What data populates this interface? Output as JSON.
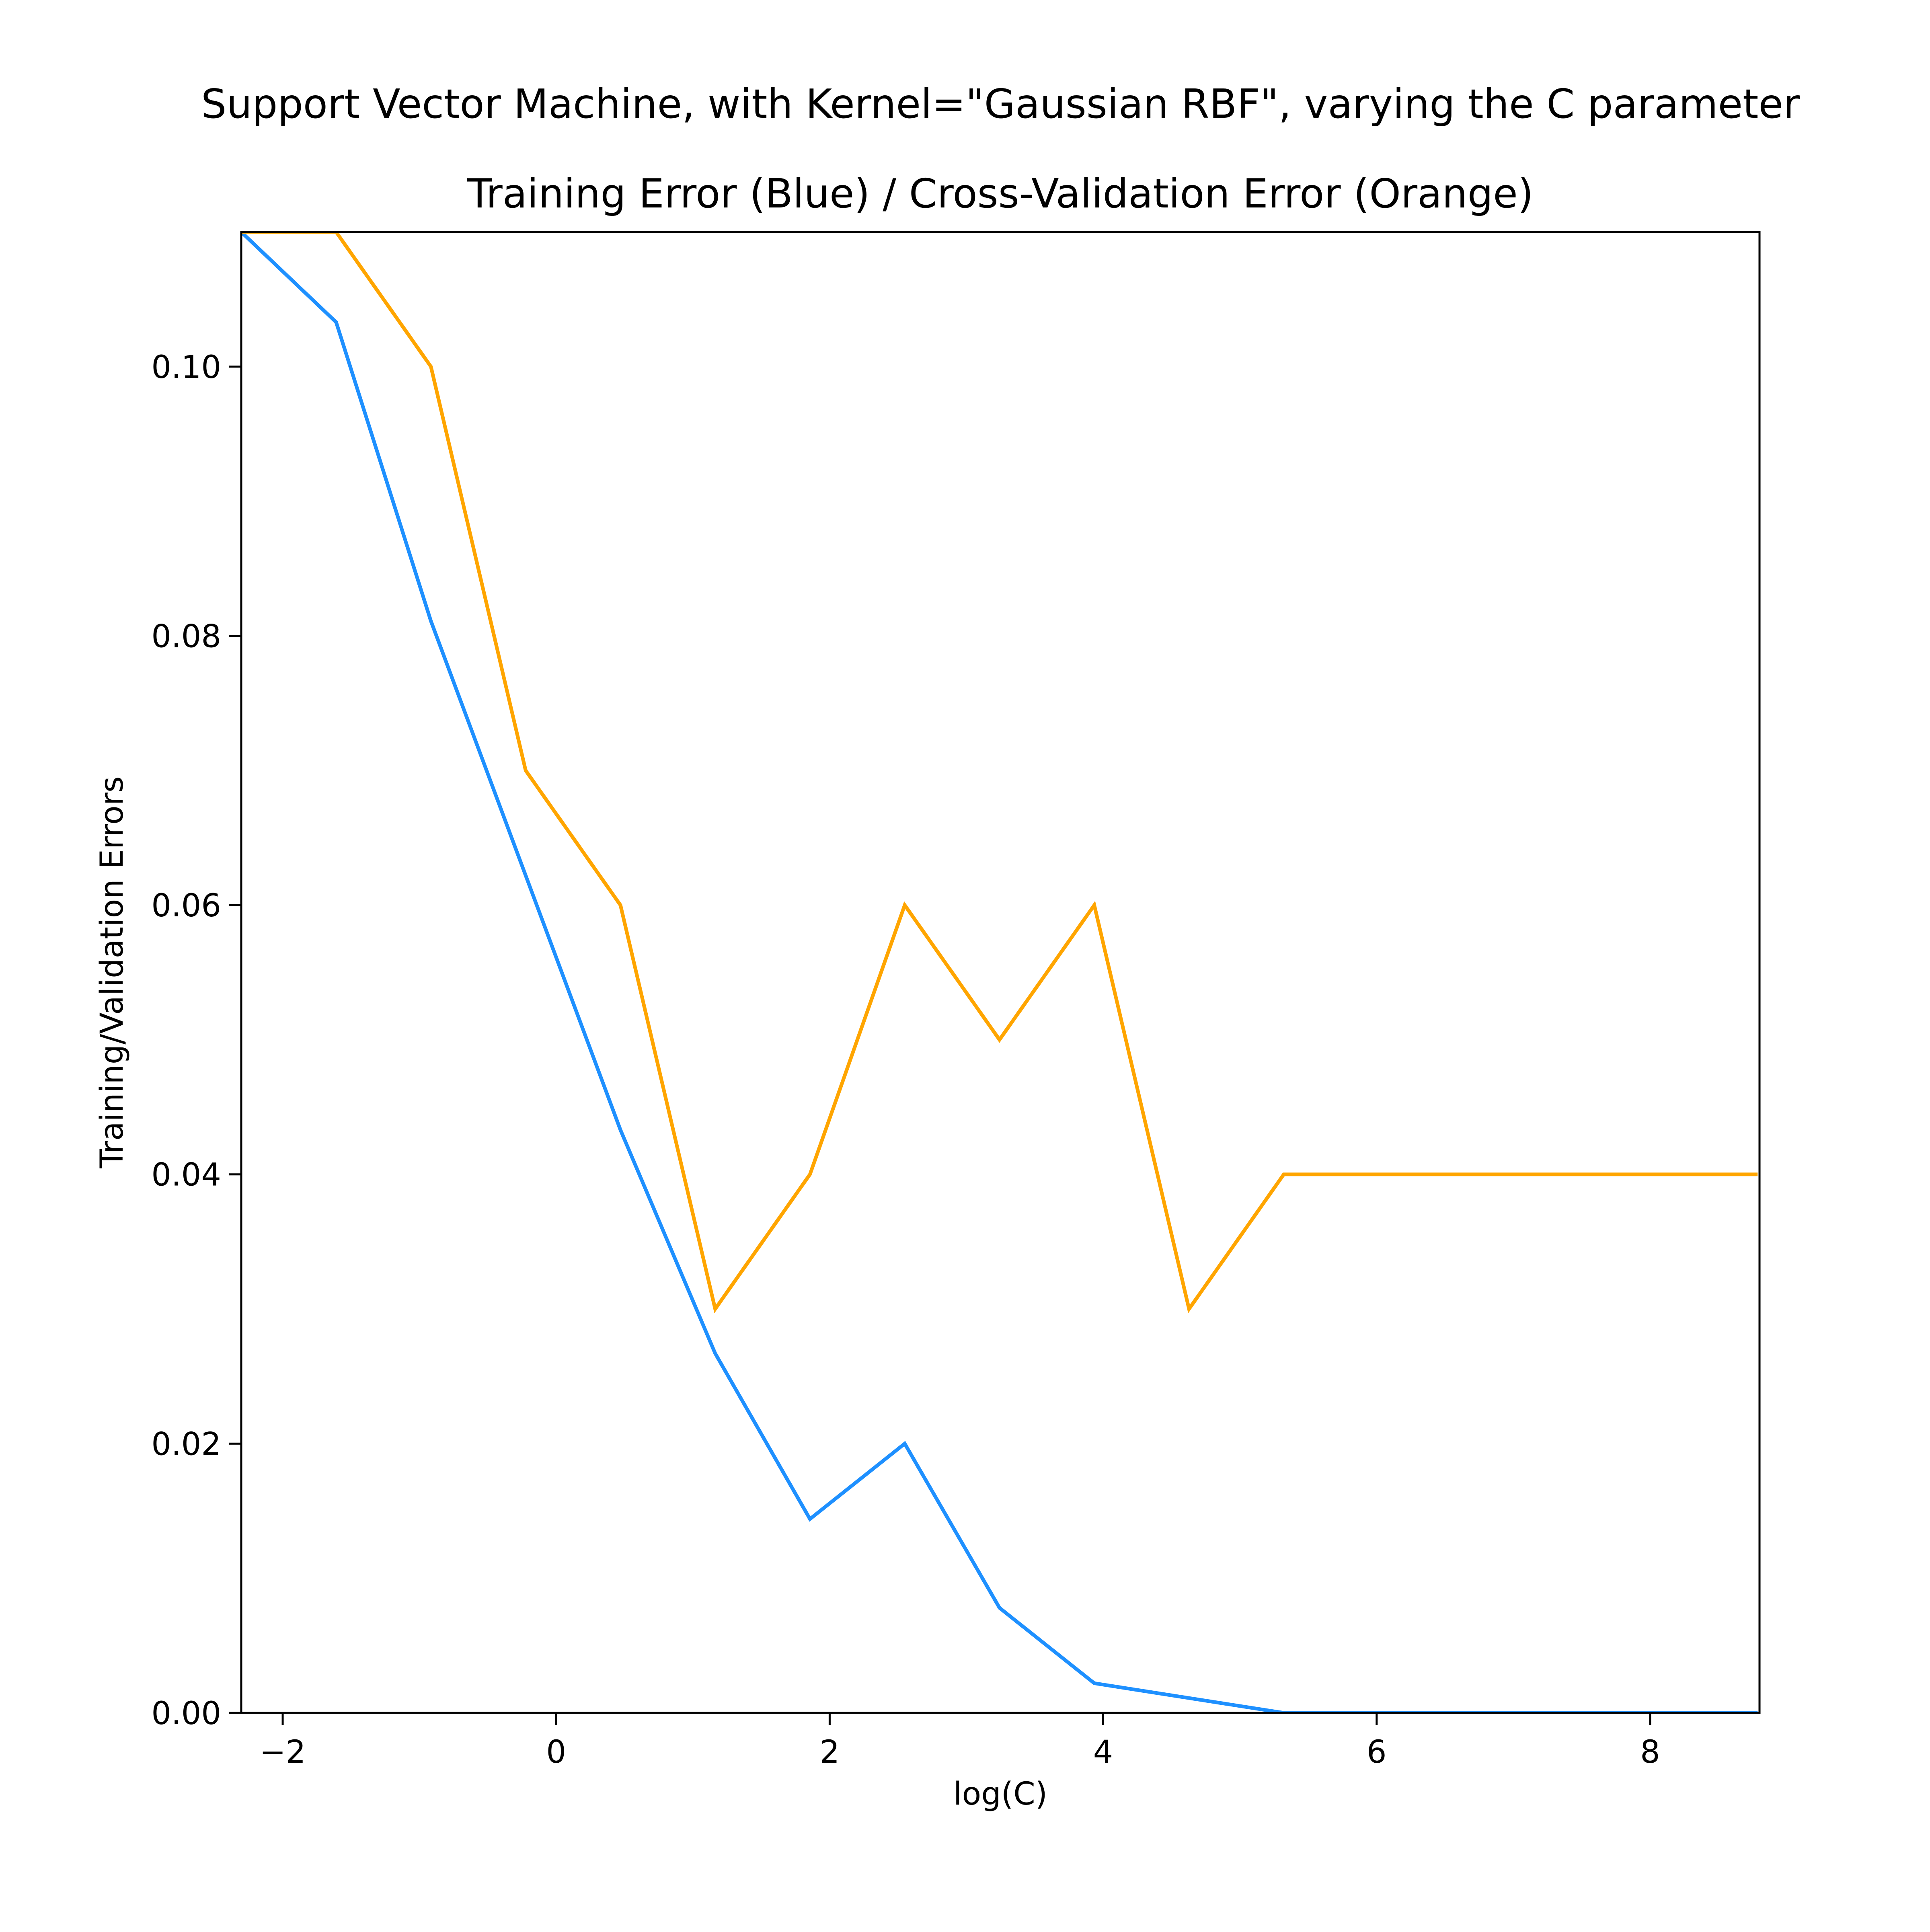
{
  "figure": {
    "suptitle": "Support Vector Machine, with Kernel=\"Gaussian RBF\", varying the C parameter"
  },
  "chart_data": {
    "type": "line",
    "title": "Training Error (Blue) / Cross-Validation Error (Orange)",
    "xlabel": "log(C)",
    "ylabel": "Training/Validation Errors",
    "xlim": [
      -2.303,
      8.8
    ],
    "ylim": [
      0,
      0.11
    ],
    "xticks": [
      -2,
      0,
      2,
      4,
      6,
      8
    ],
    "xtick_labels": [
      "−2",
      "0",
      "2",
      "4",
      "6",
      "8"
    ],
    "yticks": [
      0.0,
      0.02,
      0.04,
      0.06,
      0.08,
      0.1
    ],
    "ytick_labels": [
      "0.00",
      "0.02",
      "0.04",
      "0.06",
      "0.08",
      "0.10"
    ],
    "grid": false,
    "x": [
      -2.303,
      -1.609,
      -0.916,
      -0.223,
      0.47,
      1.163,
      1.856,
      2.549,
      3.242,
      3.935,
      4.628,
      5.321,
      6.014,
      6.707,
      7.4,
      8.093,
      8.786
    ],
    "series": [
      {
        "color": "#1E90FF",
        "values": [
          0.11,
          0.1033,
          0.0811,
          0.0622,
          0.0433,
          0.0267,
          0.0144,
          0.02,
          0.0078,
          0.0022,
          0.0011,
          0.0,
          0.0,
          0.0,
          0.0,
          0.0,
          0.0
        ]
      },
      {
        "color": "#FFA500",
        "values": [
          0.11,
          0.11,
          0.1,
          0.07,
          0.06,
          0.03,
          0.04,
          0.06,
          0.05,
          0.06,
          0.03,
          0.04,
          0.04,
          0.04,
          0.04,
          0.04,
          0.04
        ]
      }
    ]
  }
}
